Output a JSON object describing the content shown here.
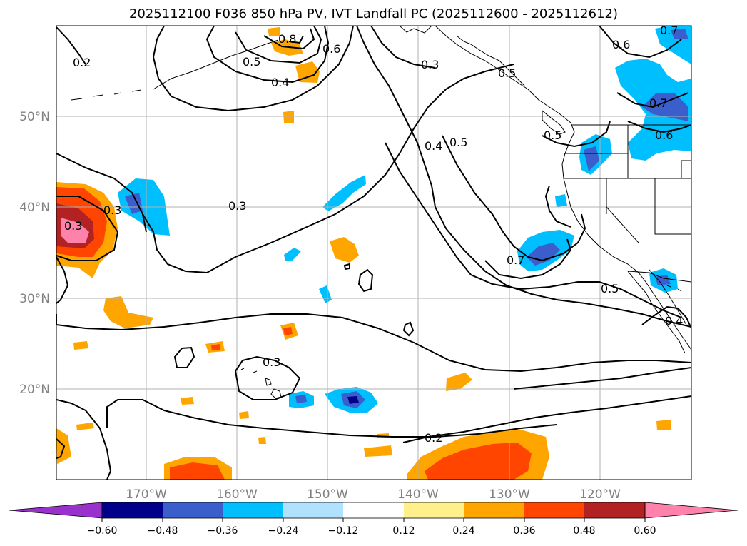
{
  "title": "2025112100 F036 850 hPa PV, IVT Landfall PC (2025112600 - 2025112612)",
  "map": {
    "lon_labels": [
      "170°W",
      "160°W",
      "150°W",
      "140°W",
      "130°W",
      "120°W"
    ],
    "lat_labels": [
      "50°N",
      "40°N",
      "30°N",
      "20°N"
    ],
    "grid": true,
    "contour_labels": [
      "0.2",
      "0.3",
      "0.4",
      "0.5",
      "0.6",
      "0.7",
      "0.8",
      "0.3",
      "0.4",
      "0.5",
      "0.3",
      "0.3",
      "0.3",
      "0.5",
      "0.7",
      "0.6",
      "0.5",
      "0.7",
      "0.6",
      "0.5",
      "0.4",
      "0.2"
    ]
  },
  "colorbar": {
    "ticks": [
      "−0.60",
      "−0.48",
      "−0.36",
      "−0.24",
      "−0.12",
      "0.12",
      "0.24",
      "0.36",
      "0.48",
      "0.60"
    ],
    "colors": {
      "under": "#9932cc",
      "b1": "#00008b",
      "b2": "#3a5fcd",
      "b3": "#00bfff",
      "b4": "#b0e2ff",
      "b5": "#ffffff",
      "b6": "#fff08c",
      "b7": "#ffa500",
      "b8": "#ff4500",
      "b9": "#b22222",
      "over": "#ff82ab"
    }
  }
}
